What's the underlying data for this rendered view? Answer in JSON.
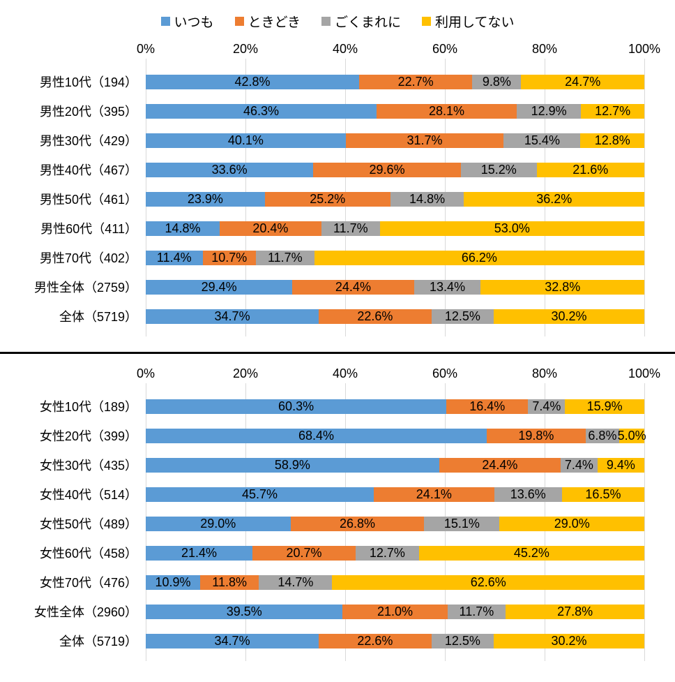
{
  "legend": {
    "items": [
      {
        "key": "always",
        "label": "いつも",
        "color": "#5B9BD5"
      },
      {
        "key": "sometimes",
        "label": "ときどき",
        "color": "#ED7D31"
      },
      {
        "key": "rarely",
        "label": "ごくまれに",
        "color": "#A5A5A5"
      },
      {
        "key": "not-using",
        "label": "利用してない",
        "color": "#FFC000"
      }
    ]
  },
  "axis_ticks": [
    "0%",
    "20%",
    "40%",
    "60%",
    "80%",
    "100%"
  ],
  "colors": {
    "always": "#5B9BD5",
    "sometimes": "#ED7D31",
    "rarely": "#A5A5A5",
    "not_using": "#FFC000",
    "gridline": "#D9D9D9",
    "divider": "#000000"
  },
  "chart_data": [
    {
      "type": "bar",
      "orientation": "horizontal",
      "stacked": true,
      "unit": "%",
      "xlim": [
        0,
        100
      ],
      "grid": true,
      "legend_position": "top",
      "categories": [
        "男性10代（194）",
        "男性20代（395）",
        "男性30代（429）",
        "男性40代（467）",
        "男性50代（461）",
        "男性60代（411）",
        "男性70代（402）",
        "男性全体（2759）",
        "全体（5719）"
      ],
      "series": [
        {
          "key": "always",
          "name": "いつも",
          "color": "#5B9BD5",
          "values": [
            42.8,
            46.3,
            40.1,
            33.6,
            23.9,
            14.8,
            11.4,
            29.4,
            34.7
          ]
        },
        {
          "key": "sometimes",
          "name": "ときどき",
          "color": "#ED7D31",
          "values": [
            22.7,
            28.1,
            31.7,
            29.6,
            25.2,
            20.4,
            10.7,
            24.4,
            22.6
          ]
        },
        {
          "key": "rarely",
          "name": "ごくまれに",
          "color": "#A5A5A5",
          "values": [
            9.8,
            12.9,
            15.4,
            15.2,
            14.8,
            11.7,
            11.7,
            13.4,
            12.5
          ]
        },
        {
          "key": "not-using",
          "name": "利用してない",
          "color": "#FFC000",
          "values": [
            24.7,
            12.7,
            12.8,
            21.6,
            36.2,
            53.0,
            66.2,
            32.8,
            30.2
          ]
        }
      ]
    },
    {
      "type": "bar",
      "orientation": "horizontal",
      "stacked": true,
      "unit": "%",
      "xlim": [
        0,
        100
      ],
      "grid": true,
      "legend_position": "top",
      "categories": [
        "女性10代（189）",
        "女性20代（399）",
        "女性30代（435）",
        "女性40代（514）",
        "女性50代（489）",
        "女性60代（458）",
        "女性70代（476）",
        "女性全体（2960）",
        "全体（5719）"
      ],
      "series": [
        {
          "key": "always",
          "name": "いつも",
          "color": "#5B9BD5",
          "values": [
            60.3,
            68.4,
            58.9,
            45.7,
            29.0,
            21.4,
            10.9,
            39.5,
            34.7
          ]
        },
        {
          "key": "sometimes",
          "name": "ときどき",
          "color": "#ED7D31",
          "values": [
            16.4,
            19.8,
            24.4,
            24.1,
            26.8,
            20.7,
            11.8,
            21.0,
            22.6
          ]
        },
        {
          "key": "rarely",
          "name": "ごくまれに",
          "color": "#A5A5A5",
          "values": [
            7.4,
            6.8,
            7.4,
            13.6,
            15.1,
            12.7,
            14.7,
            11.7,
            12.5
          ]
        },
        {
          "key": "not-using",
          "name": "利用してない",
          "color": "#FFC000",
          "values": [
            15.9,
            5.0,
            9.4,
            16.5,
            29.0,
            45.2,
            62.6,
            27.8,
            30.2
          ]
        }
      ]
    }
  ]
}
